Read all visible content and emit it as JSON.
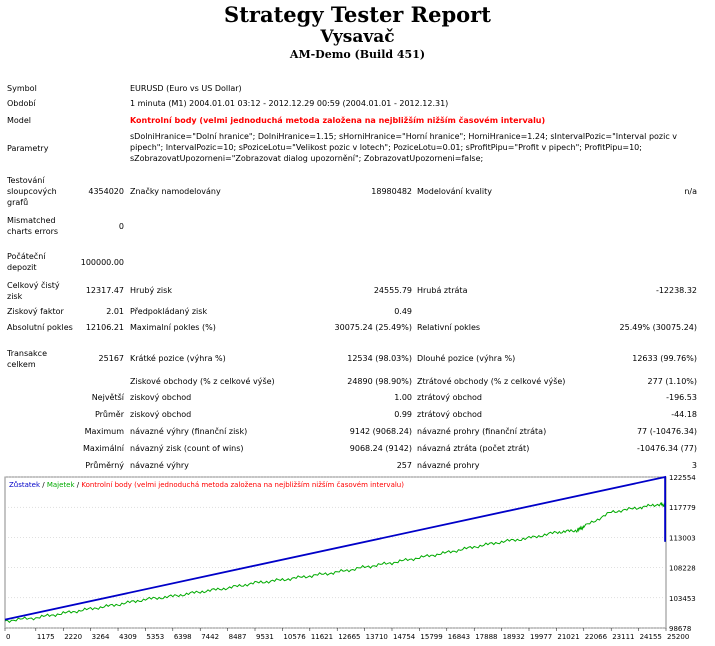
{
  "report": {
    "title": "Strategy Tester Report",
    "expert_name": "Vysavač",
    "server": "AM-Demo (Build 451)"
  },
  "info": {
    "symbol_label": "Symbol",
    "symbol_value": "EURUSD (Euro vs US Dollar)",
    "period_label": "Období",
    "period_value": "1 minuta (M1) 2004.01.01 03:12 - 2012.12.29 00:59 (2004.01.01 - 2012.12.31)",
    "model_label": "Model",
    "model_value": "Kontrolní body (velmi jednoduchá metoda založena na nejbližším nižším časovém intervalu)",
    "params_label": "Parametry",
    "params_line1": "sDolniHranice=\"Dolní hranice\"; DolniHranice=1.15; sHorniHranice=\"Horní hranice\"; HorniHranice=1.24; sIntervalPozic=\"Interval pozic v",
    "params_line2": "pipech\"; IntervalPozic=10; sPoziceLotu=\"Velikost pozic v lotech\"; PoziceLotu=0.01; sProfitPipu=\"Profit v pipech\"; ProfitPipu=10;",
    "params_line3": "sZobrazovatUpozorneni=\"Zobrazovat dialog upozornění\"; ZobrazovatUpozorneni=false;"
  },
  "stats": {
    "bars_label_1": "Testování",
    "bars_label_2": "sloupcových",
    "bars_label_3": "grafů",
    "bars_value": "4354020",
    "ticks_label": "Značky namodelovány",
    "ticks_value": "18980482",
    "quality_label": "Modelování kvality",
    "quality_value": "n/a",
    "mismatch_label_1": "Mismatched",
    "mismatch_label_2": "charts errors",
    "mismatch_value": "0",
    "deposit_label_1": "Počáteční",
    "deposit_label_2": "depozit",
    "deposit_value": "100000.00",
    "net_label_1": "Celkový čistý",
    "net_label_2": "zisk",
    "net_value": "12317.47",
    "gross_profit_label": "Hrubý zisk",
    "gross_profit_value": "24555.79",
    "gross_loss_label": "Hrubá ztráta",
    "gross_loss_value": "-12238.32",
    "profit_factor_label": "Ziskový faktor",
    "profit_factor_value": "2.01",
    "expected_label": "Předpokládaný zisk",
    "expected_value": "0.49",
    "abs_dd_label": "Absolutní pokles",
    "abs_dd_value": "12106.21",
    "max_dd_label": "Maximalní pokles (%)",
    "max_dd_value": "30075.24 (25.49%)",
    "rel_dd_label": "Relativní pokles",
    "rel_dd_value": "25.49% (30075.24)",
    "trades_label_1": "Transakce",
    "trades_label_2": "celkem",
    "trades_value": "25167",
    "short_label": "Krátké pozice (výhra %)",
    "short_value": "12534 (98.03%)",
    "long_label": "Dlouhé pozice (výhra %)",
    "long_value": "12633 (99.76%)",
    "profit_trades_label": "Ziskové obchody (% z celkové výše)",
    "profit_trades_value": "24890 (98.90%)",
    "loss_trades_label": "Ztrátové obchody (% z celkové výše)",
    "loss_trades_value": "277 (1.10%)",
    "largest_label": "Největší",
    "largest_profit_label": "ziskový obchod",
    "largest_profit_value": "1.00",
    "largest_loss_label": "ztrátový obchod",
    "largest_loss_value": "-196.53",
    "average_label": "Průměr",
    "average_profit_label": "ziskový obchod",
    "average_profit_value": "0.99",
    "average_loss_label": "ztrátový obchod",
    "average_loss_value": "-44.18",
    "maximum_label": "Maximum",
    "max_cons_wins_label": "návazné výhry (finanční zisk)",
    "max_cons_wins_value": "9142 (9068.24)",
    "max_cons_losses_label": "návazné prohry (finanční ztráta)",
    "max_cons_losses_value": "77 (-10476.34)",
    "maximal_label": "Maximální",
    "max_cons_profit_label": "návazný zisk (count of wins)",
    "max_cons_profit_value": "9068.24 (9142)",
    "max_cons_loss_label": "návazná ztráta (počet ztrát)",
    "max_cons_loss_value": "-10476.34 (77)",
    "avg_label": "Průměrný",
    "avg_cons_wins_label": "návazné výhry",
    "avg_cons_wins_value": "257",
    "avg_cons_losses_label": "návazné prohry",
    "avg_cons_losses_value": "3"
  },
  "chart_data": {
    "type": "line",
    "legend": {
      "balance": "Zůstatek",
      "equity": "Majetek",
      "model": "Kontrolní body (velmi jednoduchá metoda založena na nejbližším nižším časovém intervalu)",
      "separator": " / "
    },
    "colors": {
      "balance": "#0000c8",
      "equity": "#00aa00",
      "model": "#ff0000",
      "grid": "#c0c0c0"
    },
    "y_ticks": [
      "122554",
      "117779",
      "113003",
      "108228",
      "103453",
      "98678"
    ],
    "y_tick_values": [
      122554,
      117779,
      113003,
      108228,
      103453,
      98678
    ],
    "x_ticks": [
      "0",
      "1175",
      "2220",
      "3264",
      "4309",
      "5353",
      "6398",
      "7442",
      "8487",
      "9531",
      "10576",
      "11621",
      "12665",
      "13710",
      "14754",
      "15799",
      "16843",
      "17888",
      "18932",
      "19977",
      "21021",
      "22066",
      "23111",
      "24155",
      "25200"
    ],
    "ylim": [
      98678,
      122554
    ],
    "xlim": [
      0,
      25200
    ],
    "series": [
      {
        "key": "balance",
        "name": "Zůstatek",
        "x": [
          0,
          25167,
          25167,
          25167
        ],
        "y": [
          100000,
          122554,
          112300,
          112317
        ]
      },
      {
        "key": "equity",
        "name": "Majetek",
        "x": [
          0,
          1175,
          2220,
          3264,
          4309,
          5353,
          6398,
          7442,
          8487,
          9531,
          10576,
          11621,
          12665,
          13710,
          14754,
          15799,
          16843,
          17888,
          18932,
          19977,
          21021,
          21800,
          22066,
          23111,
          24155,
          25000,
          25167,
          25167
        ],
        "y": [
          99800,
          100300,
          101000,
          101700,
          102400,
          103200,
          103700,
          104400,
          105000,
          105800,
          106300,
          106900,
          107500,
          108300,
          109000,
          109800,
          110600,
          111500,
          112300,
          112900,
          113800,
          114100,
          114700,
          117000,
          117700,
          118300,
          118000,
          112300
        ]
      }
    ]
  }
}
